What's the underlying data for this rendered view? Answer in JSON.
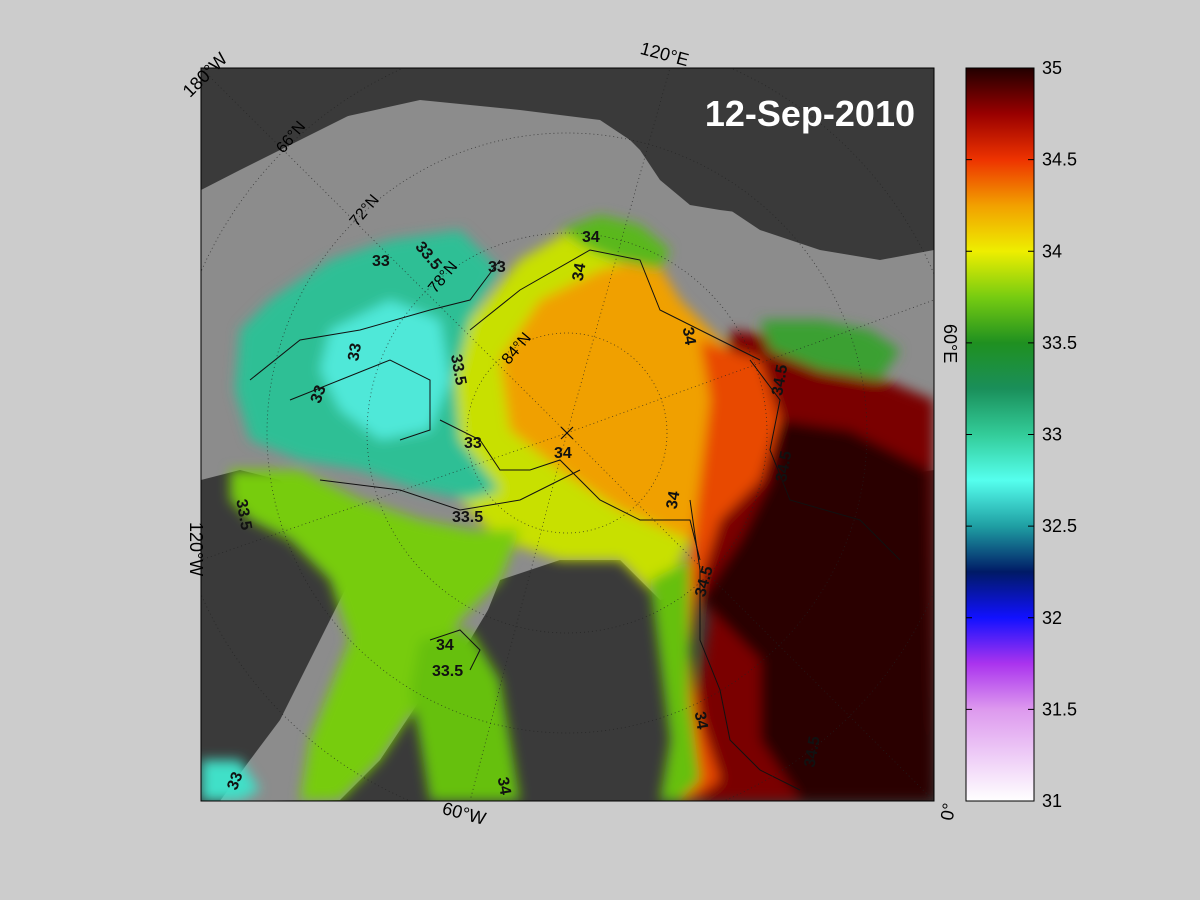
{
  "map": {
    "date_label": "12-Sep-2010",
    "longitude_labels": [
      "180°W",
      "120°E",
      "60°E",
      "0°",
      "60°W",
      "120°W"
    ],
    "latitude_labels": [
      "66°N",
      "72°N",
      "78°N",
      "84°N"
    ],
    "contour_labels": [
      "33",
      "33.5",
      "34",
      "34.5"
    ],
    "colors": {
      "background": "#cccccc",
      "land": "#3a3a3a",
      "ice_mask": "#8c8c8c",
      "ocean_shelf": "#a8a8a8"
    }
  },
  "colorbar": {
    "min": 31,
    "max": 35,
    "tick_labels": [
      "35",
      "34.5",
      "34",
      "33.5",
      "33",
      "32.5",
      "32",
      "31.5",
      "31"
    ],
    "stops": [
      {
        "v": 31.0,
        "c": "#ffffff"
      },
      {
        "v": 31.5,
        "c": "#dd99ee"
      },
      {
        "v": 31.75,
        "c": "#aa33ee"
      },
      {
        "v": 32.0,
        "c": "#1111ff"
      },
      {
        "v": 32.25,
        "c": "#001a66"
      },
      {
        "v": 32.5,
        "c": "#1f9fa3"
      },
      {
        "v": 32.75,
        "c": "#55ffee"
      },
      {
        "v": 33.0,
        "c": "#33cc99"
      },
      {
        "v": 33.25,
        "c": "#1a8f5a"
      },
      {
        "v": 33.5,
        "c": "#1f9020"
      },
      {
        "v": 33.75,
        "c": "#77cc11"
      },
      {
        "v": 34.0,
        "c": "#eeee00"
      },
      {
        "v": 34.25,
        "c": "#f2a000"
      },
      {
        "v": 34.5,
        "c": "#ee3300"
      },
      {
        "v": 34.75,
        "c": "#990000"
      },
      {
        "v": 35.0,
        "c": "#220000"
      }
    ]
  }
}
